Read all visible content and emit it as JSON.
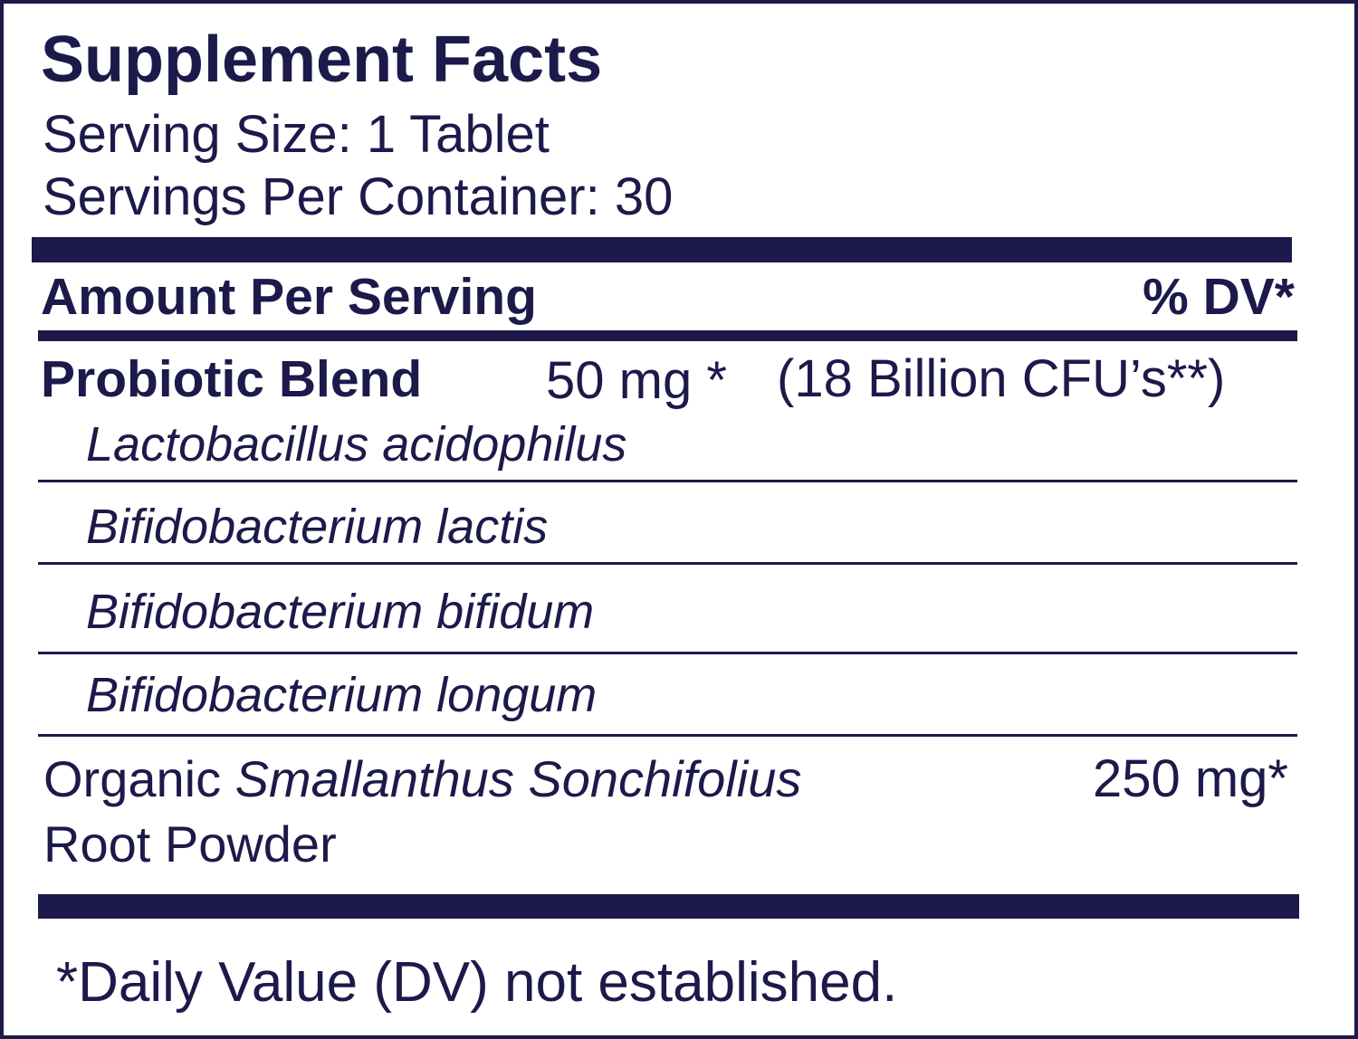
{
  "header": {
    "title": "Supplement Facts",
    "serving_size": "Serving Size: 1 Tablet",
    "servings_per_container": "Servings Per Container: 30"
  },
  "table": {
    "columns": [
      "Amount Per Serving",
      "% DV*"
    ],
    "rows": [
      {
        "name": "Probiotic Blend",
        "amount": "50 mg *",
        "note": "(18 Billion CFU’s**)",
        "components": [
          "Lactobacillus acidophilus",
          "Bifidobacterium lactis",
          "Bifidobacterium bifidum",
          "Bifidobacterium longum"
        ]
      },
      {
        "name_prefix": "Organic",
        "name": "Smallanthus Sonchifolius",
        "name_suffix": "Root Powder",
        "amount": "250 mg*"
      }
    ]
  },
  "footnote": "*Daily Value (DV) not established."
}
